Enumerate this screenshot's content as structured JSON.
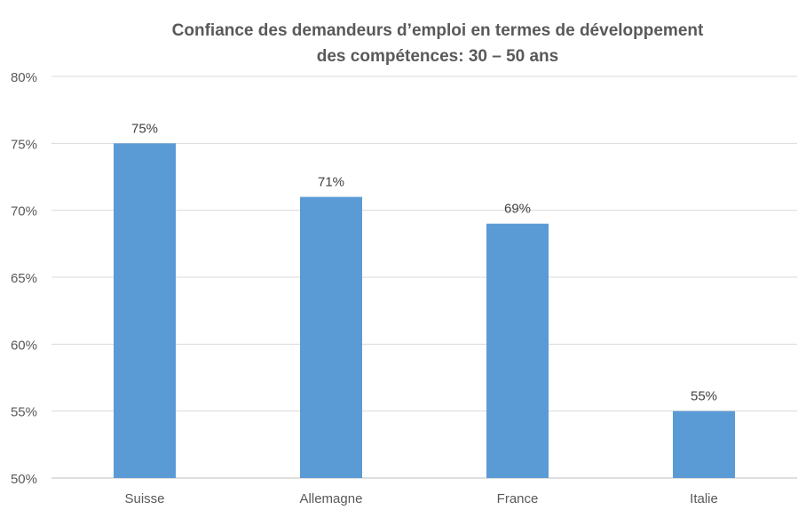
{
  "chart_data": {
    "type": "bar",
    "title_lines": [
      "Confiance des demandeurs d’emploi en termes de développement",
      "des compétences: 30 – 50 ans"
    ],
    "categories": [
      "Suisse",
      "Allemagne",
      "France",
      "Italie"
    ],
    "values": [
      75,
      71,
      69,
      55
    ],
    "data_labels": [
      "75%",
      "71%",
      "69%",
      "55%"
    ],
    "y_ticks": [
      50,
      55,
      60,
      65,
      70,
      75,
      80
    ],
    "y_tick_labels": [
      "50%",
      "55%",
      "60%",
      "65%",
      "70%",
      "75%",
      "80%"
    ],
    "ylim": [
      50,
      80
    ],
    "grid": true,
    "legend": "none",
    "colors": {
      "bar": "#5B9BD5",
      "grid": "#D9D9D9",
      "axis": "#BFBFBF",
      "title": "#595959",
      "tick_label": "#595959",
      "data_label": "#404040"
    }
  }
}
